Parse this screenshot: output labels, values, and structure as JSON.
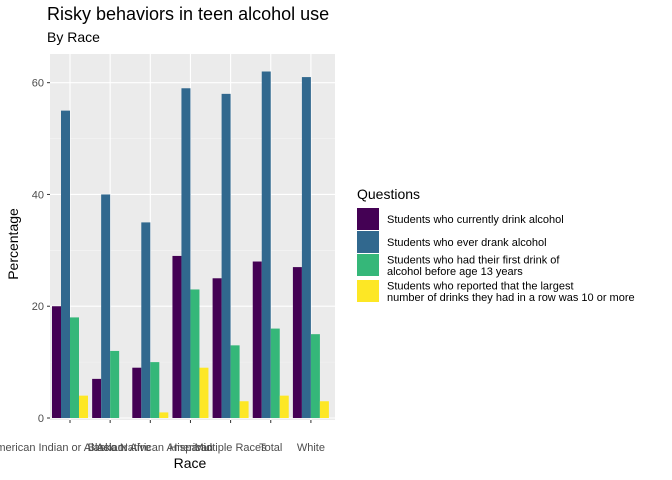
{
  "chart_data": {
    "type": "bar",
    "title": "Risky behaviors in teen alcohol use",
    "subtitle": "By Race",
    "xlabel": "Race",
    "ylabel": "Percentage",
    "ylim": [
      0,
      62
    ],
    "yticks": [
      0,
      20,
      40,
      60
    ],
    "grid": true,
    "legend_position": "right",
    "legend_title": "Questions",
    "categories": [
      "American Indian or Alaska Native",
      "Asian",
      "Black or African American",
      "Hispanic",
      "Multiple Races",
      "Total",
      "White"
    ],
    "series": [
      {
        "name": "Students who currently drink alcohol",
        "color": "#440154",
        "values": [
          20,
          7,
          9,
          29,
          25,
          28,
          27
        ]
      },
      {
        "name": "Students who ever drank alcohol",
        "color": "#31688E",
        "values": [
          55,
          40,
          35,
          59,
          58,
          62,
          61
        ]
      },
      {
        "name": "Students who had their first drink of alcohol before age 13 years",
        "label_lines": [
          "Students who had their first drink of",
          "alcohol before age 13 years"
        ],
        "color": "#35B779",
        "values": [
          18,
          12,
          10,
          23,
          13,
          16,
          15
        ]
      },
      {
        "name": "Students who reported that the largest number of drinks they had in a row was 10 or more",
        "label_lines": [
          "Students who reported that the largest",
          "number of drinks they had in a row was 10 or more"
        ],
        "color": "#FDE725",
        "values": [
          4,
          0,
          1,
          9,
          3,
          4,
          3
        ]
      }
    ]
  }
}
